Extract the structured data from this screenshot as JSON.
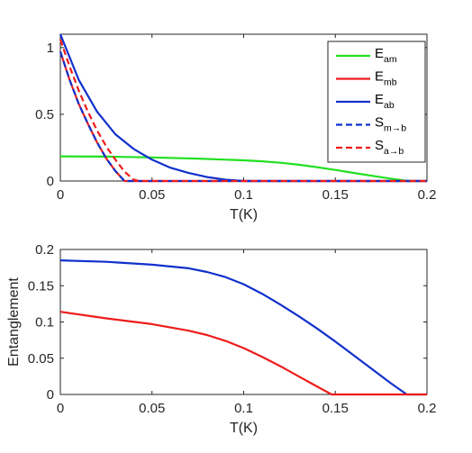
{
  "colors": {
    "green": "#22e022",
    "red": "#ee1c1c",
    "blue": "#1030cc",
    "axis": "#262626"
  },
  "chart_data": [
    {
      "type": "line",
      "xlabel": "T(K)",
      "ylabel": "",
      "xlim": [
        0,
        0.2
      ],
      "ylim": [
        0,
        1.1
      ],
      "xticks": [
        "0",
        "0.05",
        "0.1",
        "0.15",
        "0.2"
      ],
      "yticks": [
        "0",
        "0.5",
        "1"
      ],
      "grid": false,
      "legend_position": "top-right",
      "series": [
        {
          "name": "E",
          "subscript": "am",
          "color": "green",
          "style": "solid",
          "x": [
            0,
            0.025,
            0.05,
            0.075,
            0.1,
            0.11,
            0.12,
            0.13,
            0.14,
            0.15,
            0.16,
            0.17,
            0.18,
            0.19,
            0.2
          ],
          "y": [
            0.185,
            0.183,
            0.177,
            0.168,
            0.155,
            0.148,
            0.137,
            0.122,
            0.104,
            0.083,
            0.061,
            0.039,
            0.018,
            0.0,
            0.0
          ]
        },
        {
          "name": "E",
          "subscript": "mb",
          "color": "red",
          "style": "solid",
          "x": [
            0,
            0.005,
            0.01,
            0.015,
            0.02,
            0.025,
            0.03,
            0.035,
            0.04,
            0.05,
            0.1,
            0.15,
            0.2
          ],
          "y": [
            0.97,
            0.76,
            0.58,
            0.43,
            0.29,
            0.17,
            0.075,
            0.0,
            0.0,
            0.0,
            0.0,
            0.0,
            0.0
          ]
        },
        {
          "name": "E",
          "subscript": "ab",
          "color": "blue",
          "style": "solid",
          "x": [
            0,
            0.01,
            0.02,
            0.03,
            0.04,
            0.05,
            0.06,
            0.07,
            0.08,
            0.09,
            0.1,
            0.15,
            0.2
          ],
          "y": [
            1.1,
            0.76,
            0.52,
            0.35,
            0.24,
            0.16,
            0.1,
            0.06,
            0.03,
            0.01,
            0.0,
            0.0,
            0.0
          ]
        },
        {
          "name": "S",
          "subscript": "m→b",
          "color": "blue",
          "style": "dashed",
          "x": [
            0,
            0.005,
            0.01,
            0.015,
            0.02,
            0.025,
            0.03,
            0.035,
            0.04,
            0.05,
            0.1,
            0.15,
            0.2
          ],
          "y": [
            0.97,
            0.76,
            0.58,
            0.43,
            0.29,
            0.17,
            0.075,
            0.0,
            0.0,
            0.0,
            0.0,
            0.0,
            0.0
          ]
        },
        {
          "name": "S",
          "subscript": "a→b",
          "color": "red",
          "style": "dashed",
          "x": [
            0,
            0.005,
            0.01,
            0.015,
            0.02,
            0.025,
            0.03,
            0.035,
            0.04,
            0.043,
            0.05,
            0.1,
            0.15,
            0.2
          ],
          "y": [
            1.06,
            0.86,
            0.68,
            0.52,
            0.38,
            0.26,
            0.16,
            0.07,
            0.01,
            0.0,
            0.0,
            0.0,
            0.0,
            0.0
          ]
        }
      ]
    },
    {
      "type": "line",
      "xlabel": "T(K)",
      "ylabel": "Entanglement",
      "xlim": [
        0,
        0.2
      ],
      "ylim": [
        0,
        0.2
      ],
      "xticks": [
        "0",
        "0.05",
        "0.1",
        "0.15",
        "0.2"
      ],
      "yticks": [
        "0",
        "0.05",
        "0.1",
        "0.15",
        "0.2"
      ],
      "grid": false,
      "series": [
        {
          "color": "blue",
          "style": "solid",
          "x": [
            0,
            0.025,
            0.05,
            0.07,
            0.08,
            0.09,
            0.1,
            0.11,
            0.12,
            0.13,
            0.14,
            0.15,
            0.16,
            0.17,
            0.18,
            0.189,
            0.2
          ],
          "y": [
            0.185,
            0.183,
            0.179,
            0.174,
            0.169,
            0.162,
            0.152,
            0.139,
            0.124,
            0.108,
            0.091,
            0.073,
            0.054,
            0.035,
            0.016,
            0.0,
            0.0
          ]
        },
        {
          "color": "red",
          "style": "solid",
          "x": [
            0,
            0.025,
            0.05,
            0.07,
            0.08,
            0.09,
            0.1,
            0.11,
            0.12,
            0.13,
            0.14,
            0.148,
            0.15,
            0.2
          ],
          "y": [
            0.114,
            0.105,
            0.097,
            0.088,
            0.082,
            0.074,
            0.064,
            0.052,
            0.039,
            0.025,
            0.011,
            0.0,
            0.0,
            0.0
          ]
        }
      ]
    }
  ]
}
